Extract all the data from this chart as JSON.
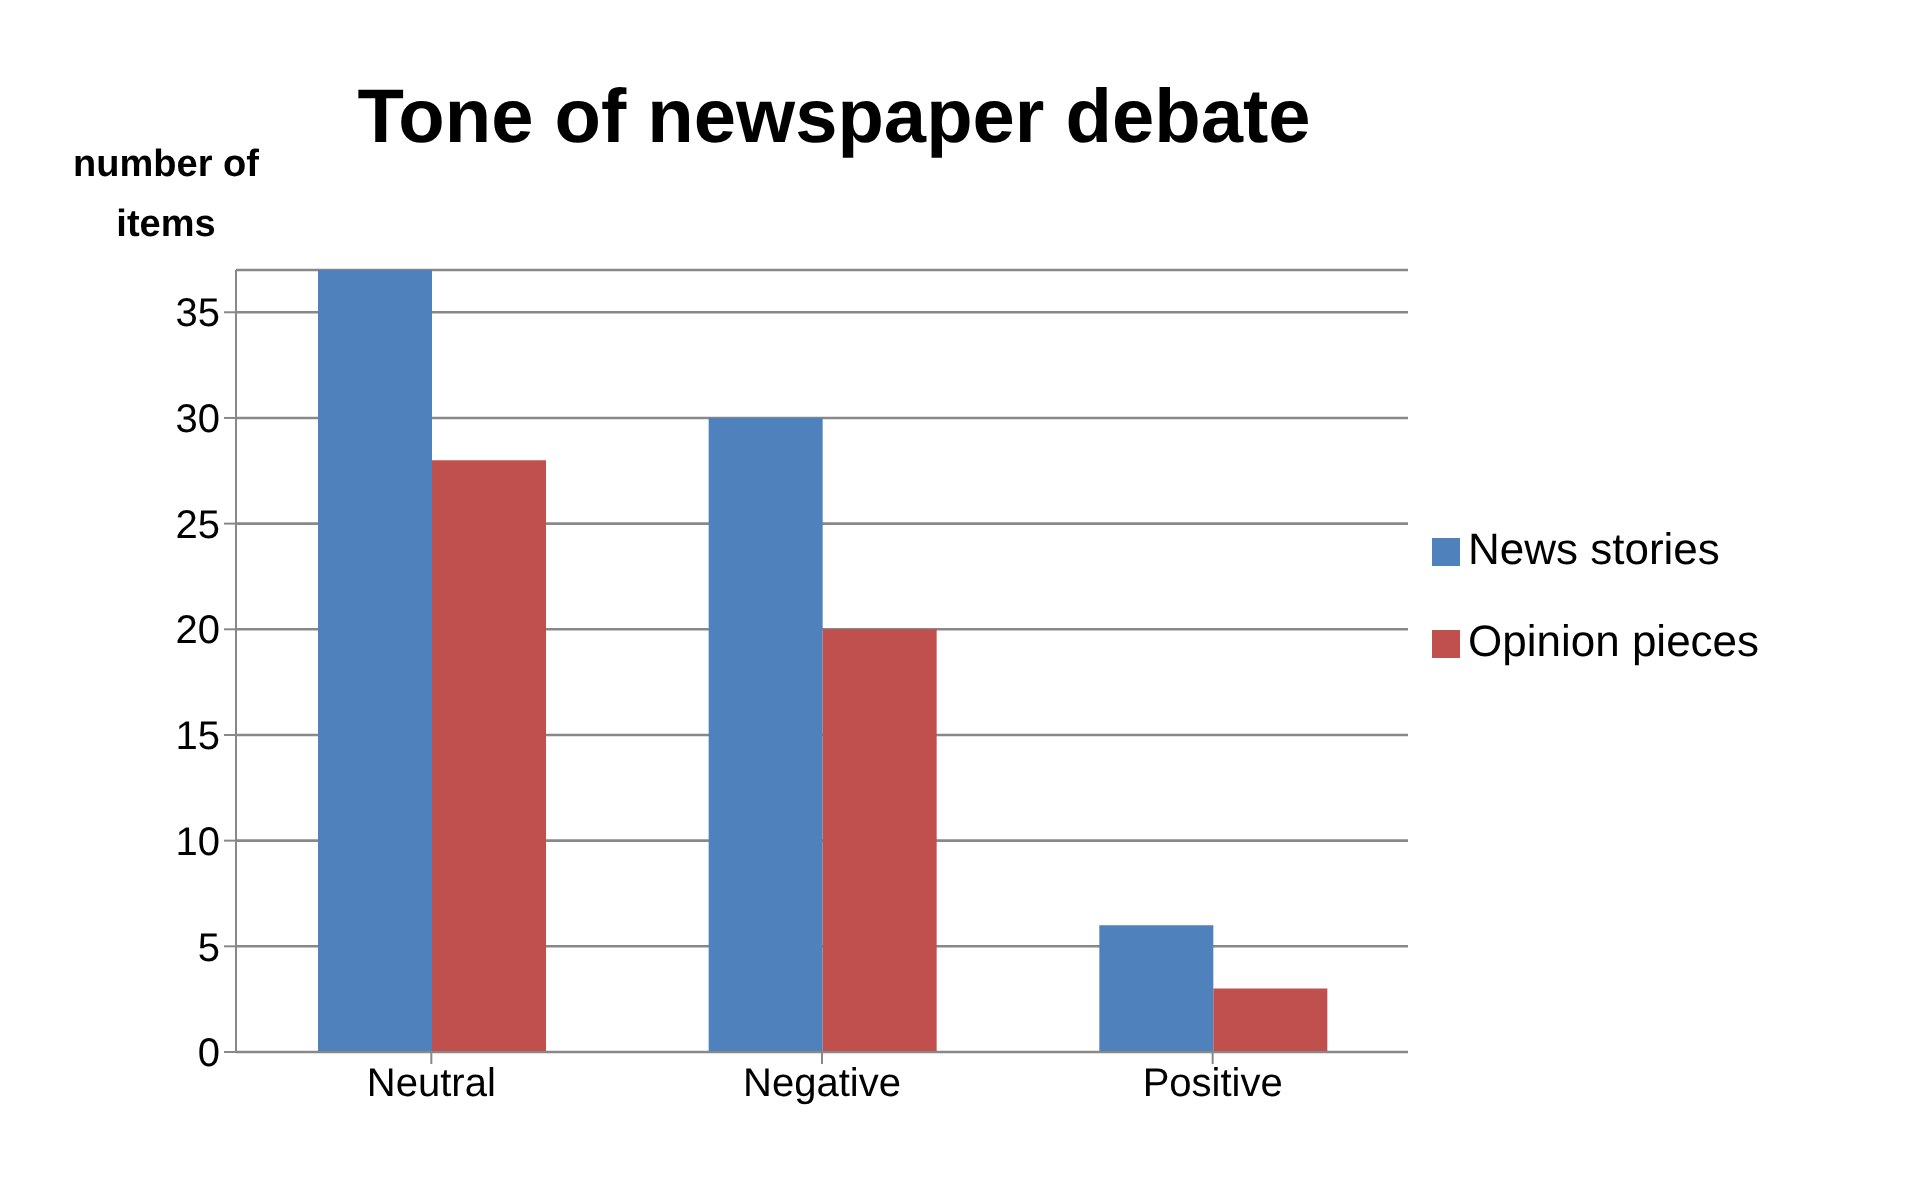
{
  "chart_data": {
    "type": "bar",
    "title": "Tone of newspaper debate",
    "ylabel": "number of items",
    "categories": [
      "Neutral",
      "Negative",
      "Positive"
    ],
    "series": [
      {
        "name": "News stories",
        "color": "#4f81bd",
        "values": [
          37,
          30,
          6
        ]
      },
      {
        "name": "Opinion pieces",
        "color": "#c0504d",
        "values": [
          28,
          20,
          3
        ]
      }
    ],
    "ylim": [
      0,
      37
    ],
    "yticks": [
      0,
      5,
      10,
      15,
      20,
      25,
      30,
      35
    ],
    "grid": "y",
    "legend": "right"
  }
}
